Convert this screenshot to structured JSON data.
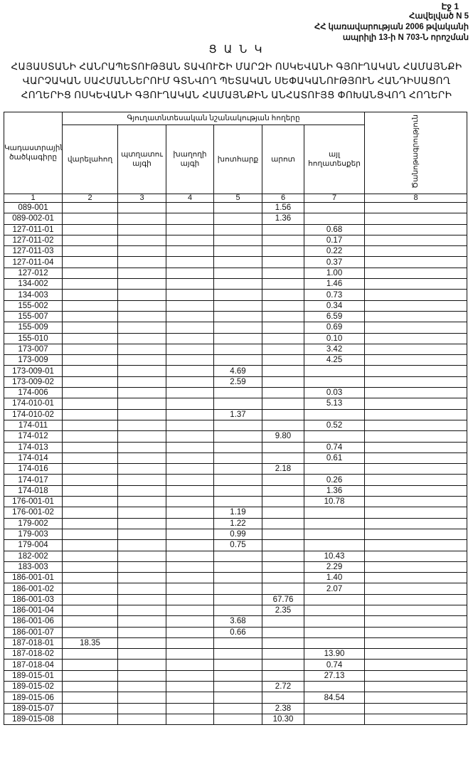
{
  "header": {
    "page_label": "Էջ 1",
    "annex_lines": [
      "Հավելված N 5",
      "ՀՀ կառավարության 2006 թվականի",
      "ապրիլի 13-ի N 703-Ն որոշման"
    ],
    "list_title": "Ց Ա Ն Կ",
    "main_title": "ՀԱՅԱՍՏԱՆԻ ՀԱՆՐԱՊԵՏՈՒԹՅԱՆ ՏԱՎՈՒՇԻ ՄԱՐԶԻ ՈՍԿԵՎԱՆԻ ԳՅՈՒՂԱԿԱՆ ՀԱՄԱՅՆՔԻ ՎԱՐՉԱԿԱՆ ՍԱՀՄԱՆՆԵՐՈՒՄ ԳՏՆՎՈՂ ՊԵՏԱԿԱՆ ՍԵՓԱԿԱՆՈՒԹՅՈՒՆ ՀԱՆԴԻՍԱՑՈՂ ՀՈՂԵՐԻՑ ՈՍԿԵՎԱՆԻ ԳՅՈՒՂԱԿԱՆ ՀԱՄԱՅՆՔԻՆ ԱՆՀԱՏՈՒՅՑ ՓՈԽԱՆՑՎՈՂ ՀՈՂԵՐԻ"
  },
  "table": {
    "col_code": "Կադաստրային ծածկագիրը",
    "group_header": "Գյուղատնտեսական նշանակության հողերը",
    "cols": [
      "վարելահող",
      "պտղատու այգի",
      "խաղողի այգի",
      "խոտհարք",
      "արոտ",
      "այլ հողատեսքեր"
    ],
    "col_note": "Ծանոթագրություն",
    "col_numbers": [
      "1",
      "2",
      "3",
      "4",
      "5",
      "6",
      "7",
      "8"
    ],
    "rows": [
      [
        "089-001",
        "",
        "",
        "",
        "",
        "1.56",
        "",
        ""
      ],
      [
        "089-002-01",
        "",
        "",
        "",
        "",
        "1.36",
        "",
        ""
      ],
      [
        "127-011-01",
        "",
        "",
        "",
        "",
        "",
        "0.68",
        ""
      ],
      [
        "127-011-02",
        "",
        "",
        "",
        "",
        "",
        "0.17",
        ""
      ],
      [
        "127-011-03",
        "",
        "",
        "",
        "",
        "",
        "0.22",
        ""
      ],
      [
        "127-011-04",
        "",
        "",
        "",
        "",
        "",
        "0.37",
        ""
      ],
      [
        "127-012",
        "",
        "",
        "",
        "",
        "",
        "1.00",
        ""
      ],
      [
        "134-002",
        "",
        "",
        "",
        "",
        "",
        "1.46",
        ""
      ],
      [
        "134-003",
        "",
        "",
        "",
        "",
        "",
        "0.73",
        ""
      ],
      [
        "155-002",
        "",
        "",
        "",
        "",
        "",
        "0.34",
        ""
      ],
      [
        "155-007",
        "",
        "",
        "",
        "",
        "",
        "6.59",
        ""
      ],
      [
        "155-009",
        "",
        "",
        "",
        "",
        "",
        "0.69",
        ""
      ],
      [
        "155-010",
        "",
        "",
        "",
        "",
        "",
        "0.10",
        ""
      ],
      [
        "173-007",
        "",
        "",
        "",
        "",
        "",
        "3.42",
        ""
      ],
      [
        "173-009",
        "",
        "",
        "",
        "",
        "",
        "4.25",
        ""
      ],
      [
        "173-009-01",
        "",
        "",
        "",
        "4.69",
        "",
        "",
        ""
      ],
      [
        "173-009-02",
        "",
        "",
        "",
        "2.59",
        "",
        "",
        ""
      ],
      [
        "174-006",
        "",
        "",
        "",
        "",
        "",
        "0.03",
        ""
      ],
      [
        "174-010-01",
        "",
        "",
        "",
        "",
        "",
        "5.13",
        ""
      ],
      [
        "174-010-02",
        "",
        "",
        "",
        "1.37",
        "",
        "",
        ""
      ],
      [
        "174-011",
        "",
        "",
        "",
        "",
        "",
        "0.52",
        ""
      ],
      [
        "174-012",
        "",
        "",
        "",
        "",
        "9.80",
        "",
        ""
      ],
      [
        "174-013",
        "",
        "",
        "",
        "",
        "",
        "0.74",
        ""
      ],
      [
        "174-014",
        "",
        "",
        "",
        "",
        "",
        "0.61",
        ""
      ],
      [
        "174-016",
        "",
        "",
        "",
        "",
        "2.18",
        "",
        ""
      ],
      [
        "174-017",
        "",
        "",
        "",
        "",
        "",
        "0.26",
        ""
      ],
      [
        "174-018",
        "",
        "",
        "",
        "",
        "",
        "1.36",
        ""
      ],
      [
        "176-001-01",
        "",
        "",
        "",
        "",
        "",
        "10.78",
        ""
      ],
      [
        "176-001-02",
        "",
        "",
        "",
        "1.19",
        "",
        "",
        ""
      ],
      [
        "179-002",
        "",
        "",
        "",
        "1.22",
        "",
        "",
        ""
      ],
      [
        "179-003",
        "",
        "",
        "",
        "0.99",
        "",
        "",
        ""
      ],
      [
        "179-004",
        "",
        "",
        "",
        "0.75",
        "",
        "",
        ""
      ],
      [
        "182-002",
        "",
        "",
        "",
        "",
        "",
        "10.43",
        ""
      ],
      [
        "183-003",
        "",
        "",
        "",
        "",
        "",
        "2.29",
        ""
      ],
      [
        "186-001-01",
        "",
        "",
        "",
        "",
        "",
        "1.40",
        ""
      ],
      [
        "186-001-02",
        "",
        "",
        "",
        "",
        "",
        "2.07",
        ""
      ],
      [
        "186-001-03",
        "",
        "",
        "",
        "",
        "67.76",
        "",
        ""
      ],
      [
        "186-001-04",
        "",
        "",
        "",
        "",
        "2.35",
        "",
        ""
      ],
      [
        "186-001-06",
        "",
        "",
        "",
        "3.68",
        "",
        "",
        ""
      ],
      [
        "186-001-07",
        "",
        "",
        "",
        "0.66",
        "",
        "",
        ""
      ],
      [
        "187-018-01",
        "18.35",
        "",
        "",
        "",
        "",
        "",
        ""
      ],
      [
        "187-018-02",
        "",
        "",
        "",
        "",
        "",
        "13.90",
        ""
      ],
      [
        "187-018-04",
        "",
        "",
        "",
        "",
        "",
        "0.74",
        ""
      ],
      [
        "189-015-01",
        "",
        "",
        "",
        "",
        "",
        "27.13",
        ""
      ],
      [
        "189-015-02",
        "",
        "",
        "",
        "",
        "2.72",
        "",
        ""
      ],
      [
        "189-015-06",
        "",
        "",
        "",
        "",
        "",
        "84.54",
        ""
      ],
      [
        "189-015-07",
        "",
        "",
        "",
        "",
        "2.38",
        "",
        ""
      ],
      [
        "189-015-08",
        "",
        "",
        "",
        "",
        "10.30",
        "",
        ""
      ]
    ]
  }
}
